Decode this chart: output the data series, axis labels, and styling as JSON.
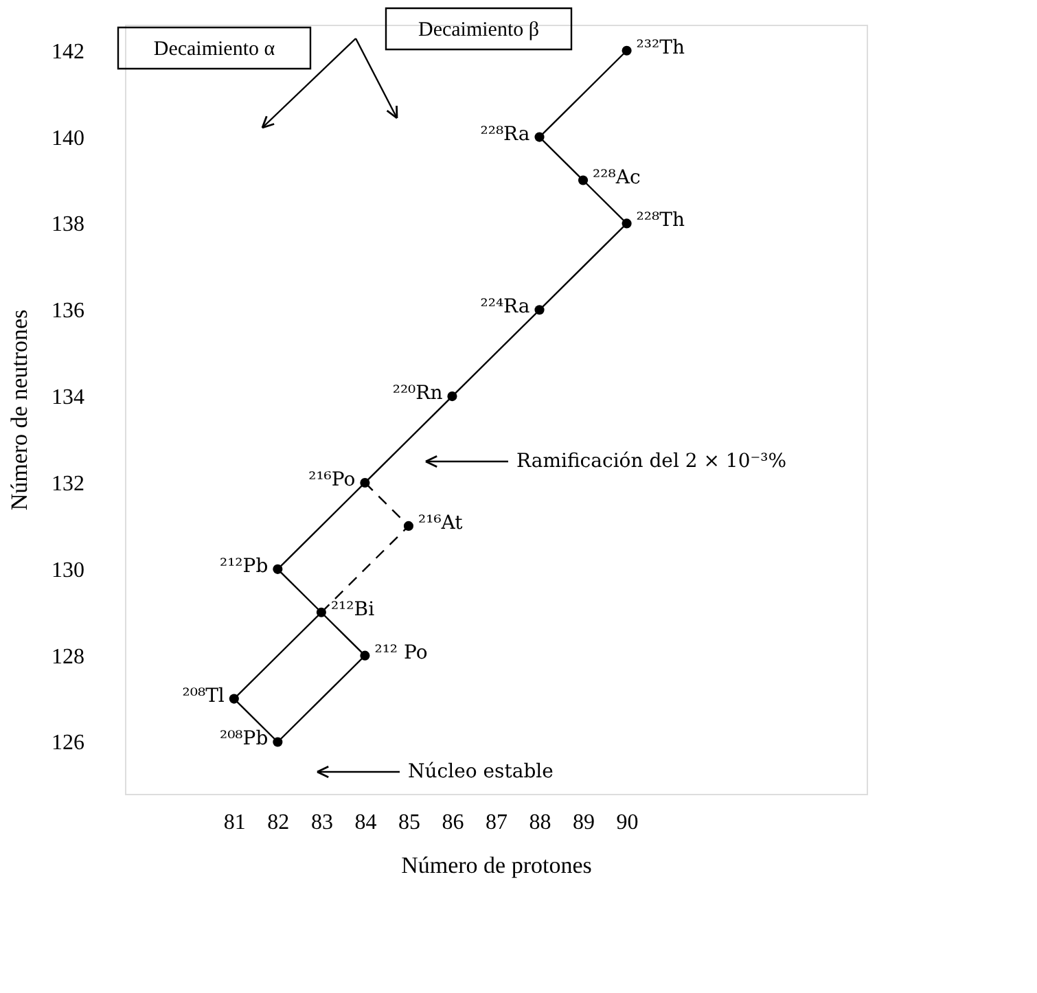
{
  "chart_data": {
    "type": "line",
    "xlabel": "Número de protones",
    "ylabel": "Número de neutrones",
    "xlim": [
      78.5,
      95.5
    ],
    "ylim": [
      124.8,
      142.6
    ],
    "xticks": [
      81,
      82,
      83,
      84,
      85,
      86,
      87,
      88,
      89,
      90
    ],
    "yticks": [
      126,
      128,
      130,
      132,
      134,
      136,
      138,
      140,
      142
    ],
    "grid": false,
    "series": [
      {
        "type": "line",
        "color": "#000000",
        "line_style": "solid",
        "marker": "none",
        "x": [
          90,
          88,
          89,
          90,
          88,
          86,
          84,
          82,
          83,
          81,
          82,
          84,
          83
        ],
        "values": [
          142,
          140,
          139,
          138,
          136,
          134,
          132,
          130,
          129,
          127,
          126,
          128,
          129
        ]
      },
      {
        "type": "line",
        "color": "#000000",
        "line_style": "dashed",
        "marker": "none",
        "x": [
          84,
          85,
          83
        ],
        "values": [
          132,
          131,
          129
        ]
      },
      {
        "type": "scatter",
        "color": "#000000",
        "marker": "circle",
        "x": [
          90,
          88,
          89,
          90,
          88,
          86,
          84,
          85,
          82,
          83,
          84,
          81,
          82
        ],
        "values": [
          142,
          140,
          139,
          138,
          136,
          134,
          132,
          131,
          130,
          129,
          128,
          127,
          126
        ]
      }
    ],
    "annotations": [
      "Decaimiento α",
      "Decaimiento β",
      {
        "text": "²³²Th",
        "x": 90,
        "y": 142
      },
      {
        "text": "²²⁸Ra",
        "x": 88,
        "y": 140
      },
      {
        "text": "²²⁸Ac",
        "x": 89,
        "y": 139
      },
      {
        "text": "²²⁸Th",
        "x": 90,
        "y": 138
      },
      {
        "text": "²²⁴Ra",
        "x": 88,
        "y": 136
      },
      {
        "text": "²²⁰Rn",
        "x": 86,
        "y": 134
      },
      {
        "text": "²¹⁶Po",
        "x": 84,
        "y": 132
      },
      {
        "text": "²¹⁶At",
        "x": 85,
        "y": 131
      },
      {
        "text": "²¹²Pb",
        "x": 82,
        "y": 130
      },
      {
        "text": "²¹²Bi",
        "x": 83,
        "y": 129
      },
      {
        "text": "²¹² Po",
        "x": 84,
        "y": 128
      },
      {
        "text": "²⁰⁸Tl",
        "x": 81,
        "y": 127
      },
      {
        "text": "²⁰⁸Pb",
        "x": 82,
        "y": 126
      },
      "Ramificación del 2 × 10⁻³%",
      "Núcleo estable"
    ]
  }
}
